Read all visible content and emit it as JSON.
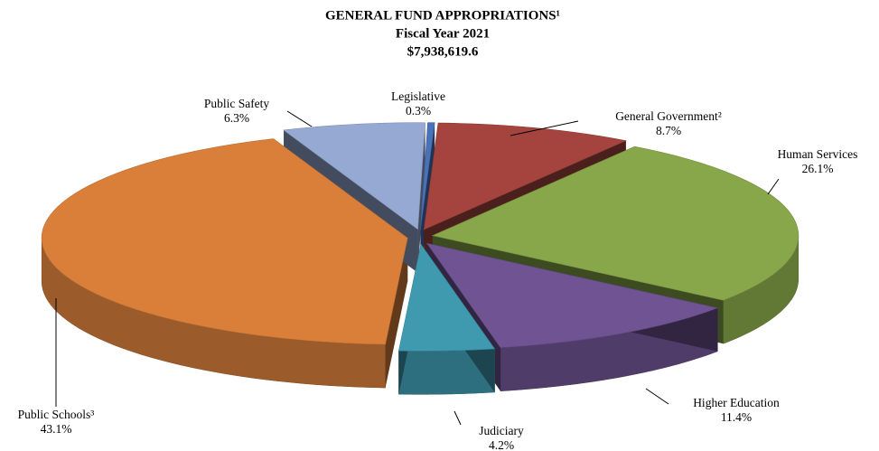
{
  "chart_data": {
    "type": "pie3d",
    "title": "GENERAL FUND APPROPRIATIONS¹",
    "subtitle": [
      "Fiscal Year 2021",
      "$7,938,619.6"
    ],
    "categories": [
      "Legislative",
      "General Government²",
      "Human Services",
      "Higher Education",
      "Judiciary",
      "Public Schools³",
      "Public Safety"
    ],
    "values": [
      0.3,
      8.7,
      26.1,
      11.4,
      4.2,
      43.1,
      6.3
    ],
    "value_labels": [
      "0.3%",
      "8.7%",
      "26.1%",
      "11.4%",
      "4.2%",
      "43.1%",
      "6.3%"
    ],
    "colors": [
      "#4a72b8",
      "#a5443f",
      "#88a64a",
      "#6f5392",
      "#3f9ab0",
      "#d97f3a",
      "#95a9d3"
    ]
  }
}
